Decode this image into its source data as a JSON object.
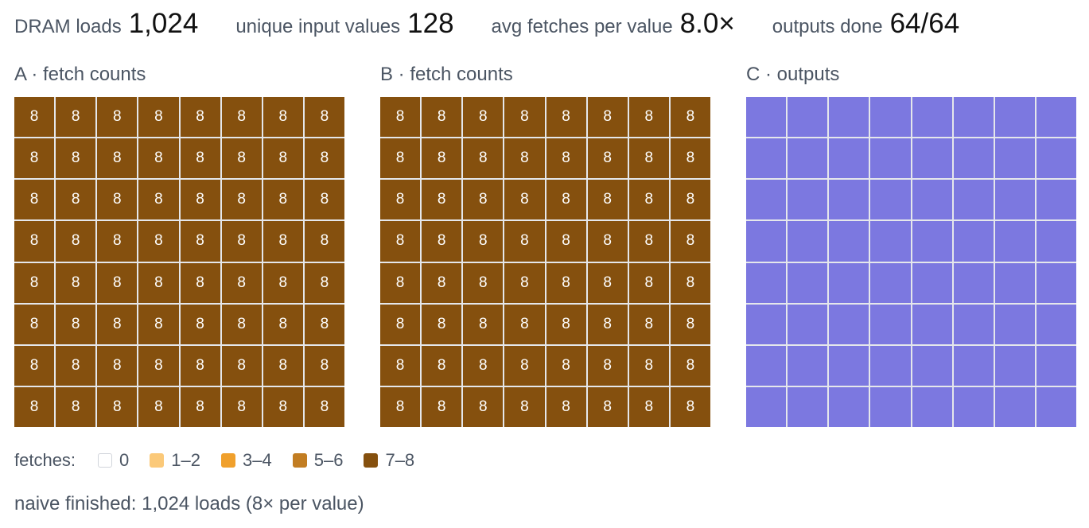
{
  "stats": [
    {
      "label": "DRAM loads",
      "value": "1,024"
    },
    {
      "label": "unique input values",
      "value": "128"
    },
    {
      "label": "avg fetches per value",
      "value": "8.0×"
    },
    {
      "label": "outputs done",
      "value": "64/64"
    }
  ],
  "panels": [
    {
      "title": "A · fetch counts",
      "type": "counts",
      "rows": 8,
      "cols": 8,
      "values": [
        [
          8,
          8,
          8,
          8,
          8,
          8,
          8,
          8
        ],
        [
          8,
          8,
          8,
          8,
          8,
          8,
          8,
          8
        ],
        [
          8,
          8,
          8,
          8,
          8,
          8,
          8,
          8
        ],
        [
          8,
          8,
          8,
          8,
          8,
          8,
          8,
          8
        ],
        [
          8,
          8,
          8,
          8,
          8,
          8,
          8,
          8
        ],
        [
          8,
          8,
          8,
          8,
          8,
          8,
          8,
          8
        ],
        [
          8,
          8,
          8,
          8,
          8,
          8,
          8,
          8
        ],
        [
          8,
          8,
          8,
          8,
          8,
          8,
          8,
          8
        ]
      ]
    },
    {
      "title": "B · fetch counts",
      "type": "counts",
      "rows": 8,
      "cols": 8,
      "values": [
        [
          8,
          8,
          8,
          8,
          8,
          8,
          8,
          8
        ],
        [
          8,
          8,
          8,
          8,
          8,
          8,
          8,
          8
        ],
        [
          8,
          8,
          8,
          8,
          8,
          8,
          8,
          8
        ],
        [
          8,
          8,
          8,
          8,
          8,
          8,
          8,
          8
        ],
        [
          8,
          8,
          8,
          8,
          8,
          8,
          8,
          8
        ],
        [
          8,
          8,
          8,
          8,
          8,
          8,
          8,
          8
        ],
        [
          8,
          8,
          8,
          8,
          8,
          8,
          8,
          8
        ],
        [
          8,
          8,
          8,
          8,
          8,
          8,
          8,
          8
        ]
      ]
    },
    {
      "title": "C · outputs",
      "type": "outputs",
      "rows": 8,
      "cols": 8,
      "done": [
        [
          1,
          1,
          1,
          1,
          1,
          1,
          1,
          1
        ],
        [
          1,
          1,
          1,
          1,
          1,
          1,
          1,
          1
        ],
        [
          1,
          1,
          1,
          1,
          1,
          1,
          1,
          1
        ],
        [
          1,
          1,
          1,
          1,
          1,
          1,
          1,
          1
        ],
        [
          1,
          1,
          1,
          1,
          1,
          1,
          1,
          1
        ],
        [
          1,
          1,
          1,
          1,
          1,
          1,
          1,
          1
        ],
        [
          1,
          1,
          1,
          1,
          1,
          1,
          1,
          1
        ],
        [
          1,
          1,
          1,
          1,
          1,
          1,
          1,
          1
        ]
      ]
    }
  ],
  "legend": {
    "title": "fetches:",
    "items": [
      {
        "label": "0",
        "color": "#ffffff",
        "min": 0,
        "max": 0
      },
      {
        "label": "1–2",
        "color": "#fbc979",
        "min": 1,
        "max": 2
      },
      {
        "label": "3–4",
        "color": "#f0a02c",
        "min": 3,
        "max": 4
      },
      {
        "label": "5–6",
        "color": "#c27d22",
        "min": 5,
        "max": 6
      },
      {
        "label": "7–8",
        "color": "#85500e",
        "min": 7,
        "max": 8
      }
    ]
  },
  "colors": {
    "output_done": "#7c78e0",
    "output_pending": "#f3f4f6",
    "grid_line": "#e5e7eb"
  },
  "status": "naive finished: 1,024 loads (8× per value)"
}
